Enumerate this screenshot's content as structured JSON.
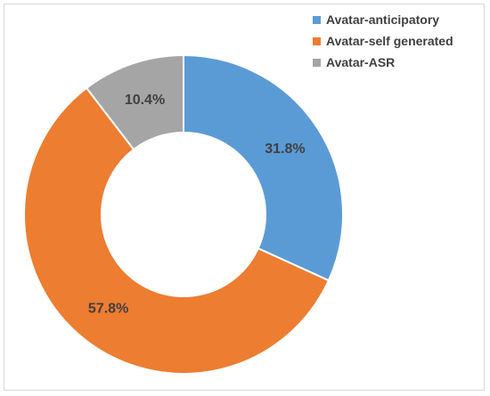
{
  "chart_data": {
    "type": "pie",
    "variant": "donut",
    "title": "",
    "legend_position": "top-right",
    "series": [
      {
        "name": "Avatar-anticipatory",
        "value": 31.8,
        "label": "31.8%",
        "color": "#5b9bd5"
      },
      {
        "name": "Avatar-self generated",
        "value": 57.8,
        "label": "57.8%",
        "color": "#ed7d31"
      },
      {
        "name": "Avatar-ASR",
        "value": 10.4,
        "label": "10.4%",
        "color": "#a5a5a5"
      }
    ]
  }
}
